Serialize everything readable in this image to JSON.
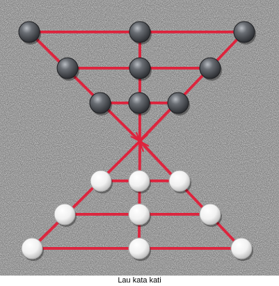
{
  "game": {
    "name": "Lau kata kati",
    "colors": {
      "background_light": "#c8c8c8",
      "background_dark": "#7a7a7a",
      "line": "#e0203a",
      "dark_piece": "#4a4d52",
      "light_piece": "#f4f4f4"
    },
    "pieces": [
      {
        "color": "dark",
        "row": 1,
        "col": 1
      },
      {
        "color": "dark",
        "row": 1,
        "col": 2
      },
      {
        "color": "dark",
        "row": 1,
        "col": 3
      },
      {
        "color": "dark",
        "row": 2,
        "col": 1
      },
      {
        "color": "dark",
        "row": 2,
        "col": 2
      },
      {
        "color": "dark",
        "row": 2,
        "col": 3
      },
      {
        "color": "dark",
        "row": 3,
        "col": 1
      },
      {
        "color": "dark",
        "row": 3,
        "col": 2
      },
      {
        "color": "dark",
        "row": 3,
        "col": 3
      },
      {
        "color": "light",
        "row": 5,
        "col": 1
      },
      {
        "color": "light",
        "row": 5,
        "col": 2
      },
      {
        "color": "light",
        "row": 5,
        "col": 3
      },
      {
        "color": "light",
        "row": 6,
        "col": 1
      },
      {
        "color": "light",
        "row": 6,
        "col": 2
      },
      {
        "color": "light",
        "row": 6,
        "col": 3
      },
      {
        "color": "light",
        "row": 7,
        "col": 1
      },
      {
        "color": "light",
        "row": 7,
        "col": 2
      },
      {
        "color": "light",
        "row": 7,
        "col": 3
      }
    ],
    "empty_points": [
      {
        "row": 4,
        "col": 2
      }
    ]
  }
}
